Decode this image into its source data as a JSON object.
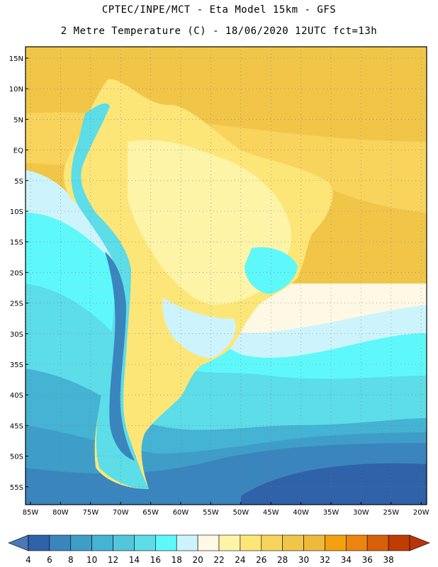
{
  "header": {
    "line1": "CPTEC/INPE/MCT -  Eta Model 15km - GFS",
    "line2": "2 Metre Temperature (C) - 18/06/2020 12UTC fct=13h"
  },
  "axes": {
    "lat_labels": [
      "15N",
      "10N",
      "5N",
      "EQ",
      "5S",
      "10S",
      "15S",
      "20S",
      "25S",
      "30S",
      "35S",
      "40S",
      "45S",
      "50S",
      "55S"
    ],
    "lon_labels": [
      "85W",
      "80W",
      "75W",
      "70W",
      "65W",
      "60W",
      "55W",
      "50W",
      "45W",
      "40W",
      "35W",
      "30W",
      "25W",
      "20W"
    ]
  },
  "colorbar": {
    "labels": [
      "4",
      "6",
      "8",
      "10",
      "12",
      "14",
      "16",
      "18",
      "20",
      "22",
      "24",
      "26",
      "28",
      "30",
      "32",
      "34",
      "36",
      "38"
    ],
    "colors": [
      "#4a78b8",
      "#2f62a8",
      "#3a85be",
      "#3e9ec8",
      "#45b3d4",
      "#52c6dd",
      "#5cdde8",
      "#5ef8fb",
      "#cdf4fc",
      "#fff8e4",
      "#fdf4a8",
      "#fde678",
      "#f8d45c",
      "#f1c648",
      "#efb93c",
      "#f3a010",
      "#ec8410",
      "#d8600b",
      "#bf3d00",
      "#b8340b"
    ]
  },
  "map_colors": {
    "ocean_n": "#f1c648",
    "ocean_n_light": "#f8d45c",
    "land_warm": "#fde678",
    "land_light": "#fdf4a8",
    "cream": "#fff8e4",
    "pale_cyan": "#cdf4fc",
    "cyan": "#5ef8fb",
    "teal": "#5cdde8",
    "mid_blue": "#45b3d4",
    "blue": "#3e9ec8",
    "deep_blue": "#3a85be",
    "darkest": "#2f62a8"
  }
}
